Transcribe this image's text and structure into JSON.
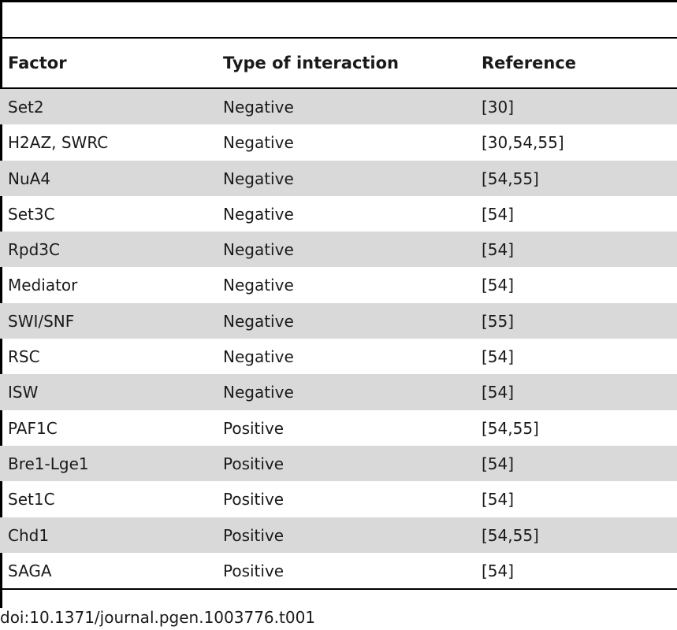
{
  "table": {
    "headers": [
      "Factor",
      "Type of interaction",
      "Reference"
    ],
    "rows": [
      [
        "Set2",
        "Negative",
        "[30]"
      ],
      [
        "H2AZ, SWRC",
        "Negative",
        "[30,54,55]"
      ],
      [
        "NuA4",
        "Negative",
        "[54,55]"
      ],
      [
        "Set3C",
        "Negative",
        "[54]"
      ],
      [
        "Rpd3C",
        "Negative",
        "[54]"
      ],
      [
        "Mediator",
        "Negative",
        "[54]"
      ],
      [
        "SWI/SNF",
        "Negative",
        "[55]"
      ],
      [
        "RSC",
        "Negative",
        "[54]"
      ],
      [
        "ISW",
        "Negative",
        "[54]"
      ],
      [
        "PAF1C",
        "Positive",
        "[54,55]"
      ],
      [
        "Bre1-Lge1",
        "Positive",
        "[54]"
      ],
      [
        "Set1C",
        "Positive",
        "[54]"
      ],
      [
        "Chd1",
        "Positive",
        "[54,55]"
      ],
      [
        "SAGA",
        "Positive",
        "[54]"
      ]
    ],
    "shading": {
      "odd_rows": "#d9d9d9",
      "even_rows": "#ffffff"
    }
  },
  "footer": {
    "doi": "doi:10.1371/journal.pgen.1003776.t001"
  }
}
